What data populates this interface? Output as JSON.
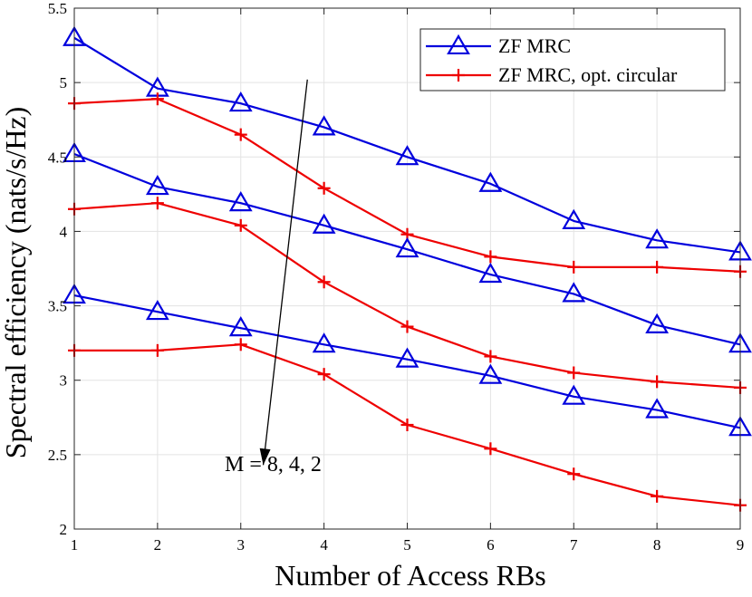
{
  "chart_data": {
    "type": "line",
    "title": "",
    "xlabel": "Number of Access RBs",
    "ylabel": "Spectral efficiency (nats/s/Hz)",
    "xlim": [
      1,
      9
    ],
    "ylim": [
      2,
      5.5
    ],
    "xticks": [
      1,
      2,
      3,
      4,
      5,
      6,
      7,
      8,
      9
    ],
    "yticks": [
      2,
      2.5,
      3,
      3.5,
      4,
      4.5,
      5,
      5.5
    ],
    "ytick_labels": [
      "2",
      "2.5",
      "3",
      "3.5",
      "4",
      "4.5",
      "5",
      "5.5"
    ],
    "grid": true,
    "legend_position": "top-right",
    "legend": [
      {
        "name": "ZF MRC",
        "color": "#0000dd",
        "marker": "triangle"
      },
      {
        "name": "ZF MRC, opt. circular",
        "color": "#ee0000",
        "marker": "plus"
      }
    ],
    "x": [
      1,
      2,
      3,
      4,
      5,
      6,
      7,
      8,
      9
    ],
    "series": [
      {
        "name": "ZF MRC",
        "M": 8,
        "color": "#0000dd",
        "marker": "triangle",
        "values": [
          5.3,
          4.96,
          4.86,
          4.7,
          4.5,
          4.32,
          4.07,
          3.94,
          3.86
        ]
      },
      {
        "name": "ZF MRC, opt. circular",
        "M": 8,
        "color": "#ee0000",
        "marker": "plus",
        "values": [
          4.86,
          4.89,
          4.65,
          4.29,
          3.98,
          3.83,
          3.76,
          3.76,
          3.73
        ]
      },
      {
        "name": "ZF MRC",
        "M": 4,
        "color": "#0000dd",
        "marker": "triangle",
        "values": [
          4.52,
          4.3,
          4.19,
          4.04,
          3.88,
          3.71,
          3.58,
          3.37,
          3.24
        ]
      },
      {
        "name": "ZF MRC, opt. circular",
        "M": 4,
        "color": "#ee0000",
        "marker": "plus",
        "values": [
          4.15,
          4.19,
          4.04,
          3.66,
          3.36,
          3.16,
          3.05,
          2.99,
          2.95
        ]
      },
      {
        "name": "ZF MRC",
        "M": 2,
        "color": "#0000dd",
        "marker": "triangle",
        "values": [
          3.57,
          3.46,
          3.35,
          3.24,
          3.14,
          3.03,
          2.89,
          2.8,
          2.68
        ]
      },
      {
        "name": "ZF MRC, opt. circular",
        "M": 2,
        "color": "#ee0000",
        "marker": "plus",
        "values": [
          3.2,
          3.2,
          3.24,
          3.04,
          2.7,
          2.54,
          2.37,
          2.22,
          2.16
        ]
      }
    ],
    "annotation": {
      "text": "M = 8, 4, 2",
      "arrow_from": [
        3.8,
        5.02
      ],
      "arrow_to": [
        3.27,
        2.43
      ]
    }
  }
}
